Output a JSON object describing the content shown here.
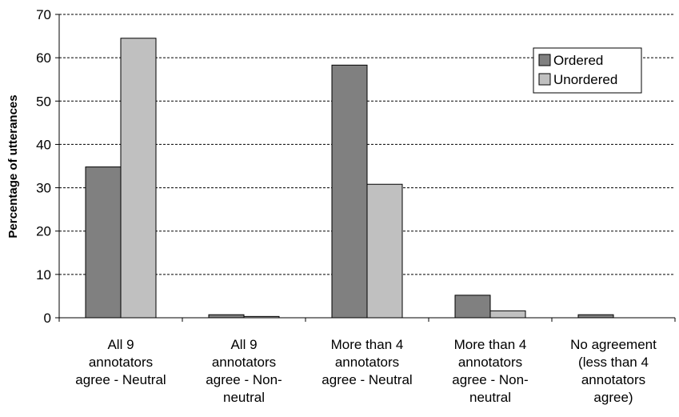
{
  "chart_data": {
    "type": "bar",
    "ylabel": "Percentage of utterances",
    "xlabel": "",
    "ylim": [
      0,
      70
    ],
    "yticks": [
      0,
      10,
      20,
      30,
      40,
      50,
      60,
      70
    ],
    "grid": "horizontal-dashed",
    "legend_position": "top-right",
    "categories": [
      [
        "All 9",
        "annotators",
        "agree - Neutral"
      ],
      [
        "All 9",
        "annotators",
        "agree - Non-",
        "neutral"
      ],
      [
        "More than 4",
        "annotators",
        "agree - Neutral"
      ],
      [
        "More than 4",
        "annotators",
        "agree - Non-",
        "neutral"
      ],
      [
        "No agreement",
        "(less than 4",
        "annotators",
        "agree)"
      ]
    ],
    "series": [
      {
        "name": "Ordered",
        "color": "#808080",
        "values": [
          34.8,
          0.7,
          58.3,
          5.2,
          0.7
        ]
      },
      {
        "name": "Unordered",
        "color": "#c0c0c0",
        "values": [
          64.5,
          0.3,
          30.8,
          1.6,
          0
        ]
      }
    ]
  }
}
